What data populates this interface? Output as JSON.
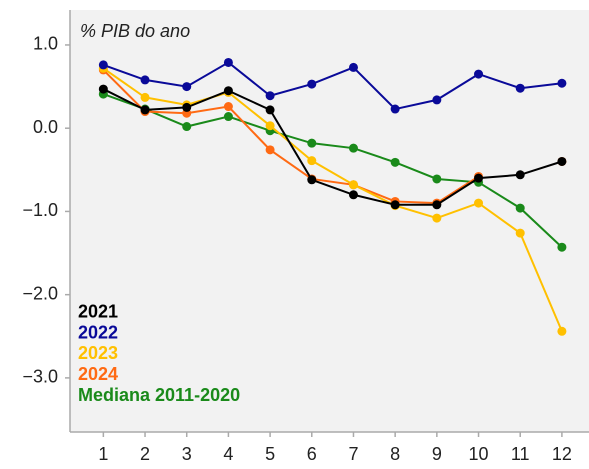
{
  "chart_data": {
    "type": "line",
    "annotation": "% PIB do ano",
    "x": [
      1,
      2,
      3,
      4,
      5,
      6,
      7,
      8,
      9,
      10,
      11,
      12
    ],
    "xlim": [
      0.2,
      12.65
    ],
    "xticks": [
      1,
      2,
      3,
      4,
      5,
      6,
      7,
      8,
      9,
      10,
      11,
      12
    ],
    "ylim": [
      -3.65,
      1.42
    ],
    "yticks": [
      {
        "value": 1,
        "label": "1.0"
      },
      {
        "value": 0,
        "label": "0.0"
      },
      {
        "value": -1,
        "label": "−1.0"
      },
      {
        "value": -2,
        "label": "−2.0"
      },
      {
        "value": -3,
        "label": "−3.0"
      }
    ],
    "legend": "lower left",
    "series": [
      {
        "name": "2021",
        "color": "#000000",
        "values": [
          0.47,
          0.22,
          0.25,
          0.45,
          0.22,
          -0.62,
          -0.8,
          -0.92,
          -0.92,
          -0.6,
          -0.56,
          -0.4
        ]
      },
      {
        "name": "2022",
        "color": "#0a0a99",
        "values": [
          0.76,
          0.58,
          0.5,
          0.79,
          0.39,
          0.53,
          0.73,
          0.23,
          0.34,
          0.65,
          0.48,
          0.54
        ]
      },
      {
        "name": "2023",
        "color": "#ffc000",
        "values": [
          0.72,
          0.37,
          0.28,
          0.43,
          0.03,
          -0.39,
          -0.68,
          -0.93,
          -1.08,
          -0.9,
          -1.26,
          -2.44
        ]
      },
      {
        "name": "2024",
        "color": "#ff6a13",
        "values": [
          0.7,
          0.2,
          0.18,
          0.26,
          -0.26,
          -0.61,
          -0.68,
          -0.88,
          -0.9,
          -0.58,
          null,
          -0.4
        ]
      },
      {
        "name": "Mediana 2011-2020",
        "color": "#1a8a1a",
        "values": [
          0.41,
          0.23,
          0.02,
          0.14,
          -0.03,
          -0.18,
          -0.24,
          -0.41,
          -0.61,
          -0.65,
          -0.96,
          -1.43
        ]
      }
    ]
  }
}
